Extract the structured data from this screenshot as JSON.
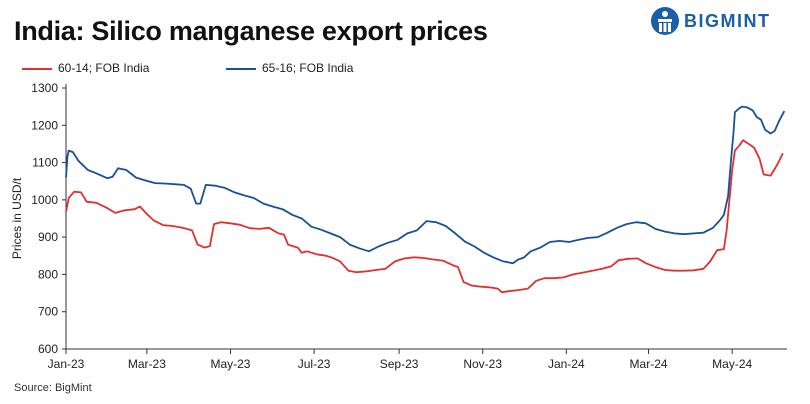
{
  "header": {
    "title": "India: Silico manganese export prices",
    "logo_text": "BIGMINT"
  },
  "footer": {
    "source": "Source: BigMint"
  },
  "chart_data": {
    "type": "line",
    "title": "India: Silico manganese export prices",
    "xlabel": "",
    "ylabel": "Prices in USD/t",
    "ylim": [
      600,
      1300
    ],
    "yticks": [
      600,
      700,
      800,
      900,
      1000,
      1100,
      1200,
      1300
    ],
    "xlim": [
      "2023-01-01",
      "2024-06-10"
    ],
    "xticks": [
      {
        "date": "2023-01-01",
        "label": "Jan-23"
      },
      {
        "date": "2023-03-01",
        "label": "Mar-23"
      },
      {
        "date": "2023-05-01",
        "label": "May-23"
      },
      {
        "date": "2023-07-01",
        "label": "Jul-23"
      },
      {
        "date": "2023-09-01",
        "label": "Sep-23"
      },
      {
        "date": "2023-11-01",
        "label": "Nov-23"
      },
      {
        "date": "2024-01-01",
        "label": "Jan-24"
      },
      {
        "date": "2024-03-01",
        "label": "Mar-24"
      },
      {
        "date": "2024-05-01",
        "label": "May-24"
      }
    ],
    "grid": false,
    "legend_position": "top-left",
    "series": [
      {
        "name": "60-14; FOB India",
        "color": "#e03030",
        "points": [
          [
            "2023-01-01",
            968
          ],
          [
            "2023-01-03",
            1005
          ],
          [
            "2023-01-07",
            1022
          ],
          [
            "2023-01-12",
            1020
          ],
          [
            "2023-01-16",
            995
          ],
          [
            "2023-01-23",
            992
          ],
          [
            "2023-01-30",
            980
          ],
          [
            "2023-02-06",
            965
          ],
          [
            "2023-02-13",
            972
          ],
          [
            "2023-02-20",
            975
          ],
          [
            "2023-02-24",
            982
          ],
          [
            "2023-03-01",
            962
          ],
          [
            "2023-03-06",
            945
          ],
          [
            "2023-03-13",
            932
          ],
          [
            "2023-03-20",
            930
          ],
          [
            "2023-03-27",
            925
          ],
          [
            "2023-04-03",
            918
          ],
          [
            "2023-04-07",
            880
          ],
          [
            "2023-04-12",
            872
          ],
          [
            "2023-04-16",
            876
          ],
          [
            "2023-04-19",
            935
          ],
          [
            "2023-04-24",
            940
          ],
          [
            "2023-05-01",
            937
          ],
          [
            "2023-05-08",
            933
          ],
          [
            "2023-05-15",
            924
          ],
          [
            "2023-05-22",
            922
          ],
          [
            "2023-05-29",
            925
          ],
          [
            "2023-06-05",
            910
          ],
          [
            "2023-06-09",
            907
          ],
          [
            "2023-06-12",
            880
          ],
          [
            "2023-06-19",
            872
          ],
          [
            "2023-06-22",
            858
          ],
          [
            "2023-06-26",
            862
          ],
          [
            "2023-07-03",
            854
          ],
          [
            "2023-07-10",
            850
          ],
          [
            "2023-07-14",
            845
          ],
          [
            "2023-07-20",
            835
          ],
          [
            "2023-07-26",
            810
          ],
          [
            "2023-08-01",
            806
          ],
          [
            "2023-08-08",
            808
          ],
          [
            "2023-08-15",
            812
          ],
          [
            "2023-08-22",
            815
          ],
          [
            "2023-08-29",
            835
          ],
          [
            "2023-09-05",
            843
          ],
          [
            "2023-09-12",
            846
          ],
          [
            "2023-09-19",
            844
          ],
          [
            "2023-09-26",
            840
          ],
          [
            "2023-10-03",
            837
          ],
          [
            "2023-10-10",
            825
          ],
          [
            "2023-10-14",
            820
          ],
          [
            "2023-10-18",
            780
          ],
          [
            "2023-10-24",
            770
          ],
          [
            "2023-10-31",
            767
          ],
          [
            "2023-11-07",
            765
          ],
          [
            "2023-11-12",
            762
          ],
          [
            "2023-11-15",
            752
          ],
          [
            "2023-11-20",
            755
          ],
          [
            "2023-11-27",
            758
          ],
          [
            "2023-12-04",
            762
          ],
          [
            "2023-12-10",
            783
          ],
          [
            "2023-12-16",
            790
          ],
          [
            "2023-12-23",
            790
          ],
          [
            "2023-12-30",
            792
          ],
          [
            "2024-01-06",
            800
          ],
          [
            "2024-01-13",
            805
          ],
          [
            "2024-01-20",
            810
          ],
          [
            "2024-01-27",
            815
          ],
          [
            "2024-02-03",
            822
          ],
          [
            "2024-02-08",
            838
          ],
          [
            "2024-02-15",
            842
          ],
          [
            "2024-02-22",
            843
          ],
          [
            "2024-02-28",
            830
          ],
          [
            "2024-03-06",
            820
          ],
          [
            "2024-03-13",
            812
          ],
          [
            "2024-03-20",
            810
          ],
          [
            "2024-03-27",
            810
          ],
          [
            "2024-04-03",
            811
          ],
          [
            "2024-04-10",
            815
          ],
          [
            "2024-04-15",
            835
          ],
          [
            "2024-04-20",
            865
          ],
          [
            "2024-04-25",
            868
          ],
          [
            "2024-04-27",
            920
          ],
          [
            "2024-04-29",
            1000
          ],
          [
            "2024-05-01",
            1080
          ],
          [
            "2024-05-03",
            1132
          ],
          [
            "2024-05-06",
            1145
          ],
          [
            "2024-05-09",
            1160
          ],
          [
            "2024-05-13",
            1150
          ],
          [
            "2024-05-17",
            1140
          ],
          [
            "2024-05-21",
            1110
          ],
          [
            "2024-05-24",
            1068
          ],
          [
            "2024-05-29",
            1065
          ],
          [
            "2024-06-03",
            1095
          ],
          [
            "2024-06-07",
            1125
          ]
        ]
      },
      {
        "name": "65-16; FOB India",
        "color": "#1a4f9a",
        "points": [
          [
            "2023-01-01",
            1060
          ],
          [
            "2023-01-02",
            1115
          ],
          [
            "2023-01-03",
            1132
          ],
          [
            "2023-01-06",
            1128
          ],
          [
            "2023-01-10",
            1105
          ],
          [
            "2023-01-17",
            1080
          ],
          [
            "2023-01-24",
            1070
          ],
          [
            "2023-01-31",
            1058
          ],
          [
            "2023-02-04",
            1062
          ],
          [
            "2023-02-08",
            1085
          ],
          [
            "2023-02-14",
            1080
          ],
          [
            "2023-02-21",
            1060
          ],
          [
            "2023-02-28",
            1052
          ],
          [
            "2023-03-07",
            1045
          ],
          [
            "2023-03-14",
            1044
          ],
          [
            "2023-03-21",
            1042
          ],
          [
            "2023-03-28",
            1040
          ],
          [
            "2023-04-02",
            1030
          ],
          [
            "2023-04-06",
            990
          ],
          [
            "2023-04-09",
            990
          ],
          [
            "2023-04-13",
            1040
          ],
          [
            "2023-04-20",
            1038
          ],
          [
            "2023-04-27",
            1032
          ],
          [
            "2023-05-04",
            1020
          ],
          [
            "2023-05-11",
            1012
          ],
          [
            "2023-05-18",
            1005
          ],
          [
            "2023-05-25",
            990
          ],
          [
            "2023-06-01",
            982
          ],
          [
            "2023-06-08",
            975
          ],
          [
            "2023-06-15",
            960
          ],
          [
            "2023-06-22",
            950
          ],
          [
            "2023-06-29",
            928
          ],
          [
            "2023-07-06",
            920
          ],
          [
            "2023-07-13",
            910
          ],
          [
            "2023-07-20",
            900
          ],
          [
            "2023-07-27",
            880
          ],
          [
            "2023-08-03",
            870
          ],
          [
            "2023-08-10",
            862
          ],
          [
            "2023-08-17",
            875
          ],
          [
            "2023-08-24",
            885
          ],
          [
            "2023-08-31",
            893
          ],
          [
            "2023-09-07",
            910
          ],
          [
            "2023-09-14",
            918
          ],
          [
            "2023-09-21",
            943
          ],
          [
            "2023-09-28",
            940
          ],
          [
            "2023-10-05",
            930
          ],
          [
            "2023-10-12",
            910
          ],
          [
            "2023-10-19",
            888
          ],
          [
            "2023-10-26",
            875
          ],
          [
            "2023-11-02",
            858
          ],
          [
            "2023-11-09",
            845
          ],
          [
            "2023-11-16",
            835
          ],
          [
            "2023-11-23",
            830
          ],
          [
            "2023-11-27",
            840
          ],
          [
            "2023-12-01",
            845
          ],
          [
            "2023-12-06",
            862
          ],
          [
            "2023-12-13",
            872
          ],
          [
            "2023-12-20",
            887
          ],
          [
            "2023-12-27",
            890
          ],
          [
            "2024-01-03",
            887
          ],
          [
            "2024-01-10",
            893
          ],
          [
            "2024-01-17",
            898
          ],
          [
            "2024-01-24",
            900
          ],
          [
            "2024-01-31",
            912
          ],
          [
            "2024-02-07",
            925
          ],
          [
            "2024-02-14",
            935
          ],
          [
            "2024-02-21",
            940
          ],
          [
            "2024-02-28",
            937
          ],
          [
            "2024-03-06",
            922
          ],
          [
            "2024-03-13",
            915
          ],
          [
            "2024-03-20",
            910
          ],
          [
            "2024-03-27",
            908
          ],
          [
            "2024-04-03",
            910
          ],
          [
            "2024-04-10",
            912
          ],
          [
            "2024-04-17",
            925
          ],
          [
            "2024-04-22",
            945
          ],
          [
            "2024-04-25",
            960
          ],
          [
            "2024-04-28",
            1010
          ],
          [
            "2024-04-30",
            1100
          ],
          [
            "2024-05-02",
            1180
          ],
          [
            "2024-05-03",
            1235
          ],
          [
            "2024-05-06",
            1245
          ],
          [
            "2024-05-08",
            1250
          ],
          [
            "2024-05-12",
            1248
          ],
          [
            "2024-05-16",
            1240
          ],
          [
            "2024-05-19",
            1222
          ],
          [
            "2024-05-22",
            1215
          ],
          [
            "2024-05-25",
            1188
          ],
          [
            "2024-05-29",
            1178
          ],
          [
            "2024-06-01",
            1185
          ],
          [
            "2024-06-04",
            1210
          ],
          [
            "2024-06-08",
            1238
          ]
        ]
      }
    ]
  }
}
